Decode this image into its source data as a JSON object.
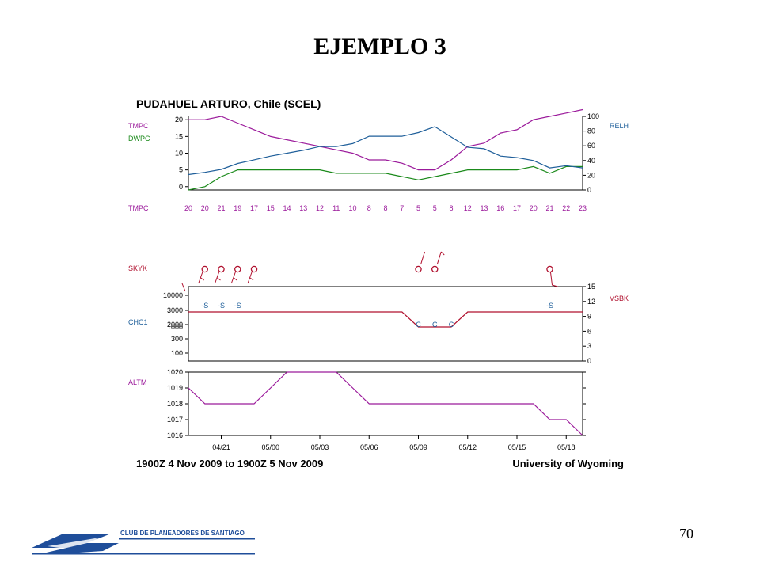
{
  "slide": {
    "title": "EJEMPLO 3",
    "page_number": "70"
  },
  "logo": {
    "text": "CLUB DE PLANEADORES DE SANTIAGO",
    "color": "#1f4e9a"
  },
  "colors": {
    "purple": "#9b1a9b",
    "green": "#1b8a1b",
    "blue": "#1f5f9a",
    "red": "#b0102e",
    "axis": "#000000"
  },
  "chart_data": [
    {
      "type": "line",
      "title": "PUDAHUEL ARTURO, Chile (SCEL)",
      "left_labels": [
        "TMPC",
        "DWPC"
      ],
      "right_label": "RELH",
      "left_ticks": [
        "20",
        "15",
        "10",
        "5",
        "0"
      ],
      "right_ticks": [
        "100",
        "80",
        "60",
        "40",
        "20",
        "0"
      ],
      "ylim_left": [
        -1,
        21
      ],
      "ylim_right": [
        0,
        100
      ],
      "series": [
        {
          "name": "TMPC",
          "axis": "left",
          "color": "#9b1a9b",
          "values": [
            20,
            20,
            21,
            19,
            17,
            15,
            14,
            13,
            12,
            11,
            10,
            8,
            8,
            7,
            5,
            5,
            8,
            12,
            13,
            16,
            17,
            20,
            21,
            22,
            23
          ]
        },
        {
          "name": "DWPC",
          "axis": "left",
          "color": "#1b8a1b",
          "values": [
            -1,
            0,
            3,
            5,
            5,
            5,
            5,
            5,
            5,
            4,
            4,
            4,
            4,
            3,
            2,
            3,
            4,
            5,
            5,
            5,
            5,
            6,
            4,
            6,
            6
          ]
        },
        {
          "name": "RELH",
          "axis": "right",
          "color": "#1f5f9a",
          "values": [
            21,
            24,
            28,
            36,
            41,
            46,
            50,
            54,
            59,
            59,
            63,
            73,
            73,
            73,
            78,
            86,
            72,
            58,
            56,
            46,
            44,
            40,
            30,
            33,
            30
          ]
        }
      ],
      "bottom_row_label": "TMPC",
      "bottom_row_values": [
        "20",
        "20",
        "21",
        "19",
        "17",
        "15",
        "14",
        "13",
        "12",
        "11",
        "10",
        "8",
        "8",
        "7",
        "5",
        "5",
        "8",
        "12",
        "13",
        "16",
        "17",
        "20",
        "21",
        "22",
        "23"
      ]
    },
    {
      "type": "line",
      "left_labels": [
        "SKYK",
        "CHC1"
      ],
      "right_label": "VSBK",
      "left_ticks": [
        "10000",
        "3000",
        "2000",
        "1000",
        "300",
        "100"
      ],
      "right_ticks": [
        "15",
        "12",
        "9",
        "6",
        "3",
        "0"
      ],
      "ceiling_series": {
        "name": "CHC1",
        "color": "#b0102e",
        "values": [
          "3000",
          "3000",
          "3000",
          "3000",
          "3000",
          "3000",
          "3000",
          "3000",
          "3000",
          "3000",
          "3000",
          "3000",
          "3000",
          "3000",
          "1000",
          "1000",
          "1000",
          "3000",
          "3000",
          "3000",
          "3000",
          "3000",
          "3000",
          "3000",
          "3000"
        ]
      },
      "weather_annotations": [
        {
          "hour": 1,
          "text": "-S"
        },
        {
          "hour": 2,
          "text": "-S"
        },
        {
          "hour": 3,
          "text": "-S"
        },
        {
          "hour": 14,
          "text": "C"
        },
        {
          "hour": 15,
          "text": "C"
        },
        {
          "hour": 16,
          "text": "C"
        },
        {
          "hour": 22,
          "text": "-S"
        }
      ],
      "sky_symbols": [
        1,
        2,
        3,
        4,
        14,
        15,
        22
      ]
    },
    {
      "type": "line",
      "left_label": "ALTM",
      "left_ticks": [
        "1020",
        "1019",
        "1018",
        "1017",
        "1016"
      ],
      "ylim": [
        1016,
        1020
      ],
      "series": [
        {
          "name": "ALTM",
          "color": "#9b1a9b",
          "values": [
            1019,
            1018,
            1018,
            1018,
            1018,
            1019,
            1020,
            1020,
            1020,
            1020,
            1019,
            1018,
            1018,
            1018,
            1018,
            1018,
            1018,
            1018,
            1018,
            1018,
            1018,
            1018,
            1017,
            1017,
            1016
          ]
        }
      ],
      "x_ticks": [
        "04/21",
        "05/00",
        "05/03",
        "05/06",
        "05/09",
        "05/12",
        "05/15",
        "05/18"
      ],
      "footer_left": "1900Z  4 Nov 2009 to 1900Z  5 Nov 2009",
      "footer_right": "University of Wyoming"
    }
  ]
}
